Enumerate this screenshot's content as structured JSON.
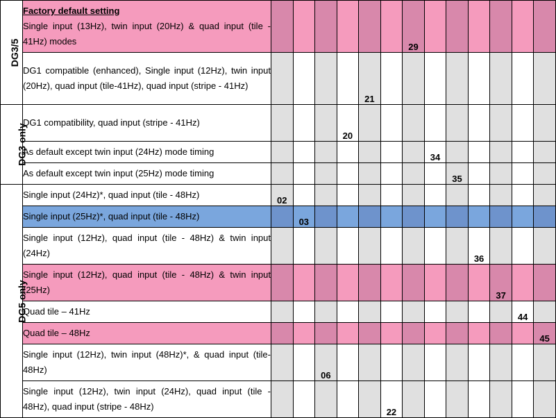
{
  "groups": [
    {
      "label": "DG3/5",
      "rows": 2
    },
    {
      "label": "DG3 only",
      "rows": 3
    },
    {
      "label": "DG5 only",
      "rows": 8
    }
  ],
  "column_count": 13,
  "rows": [
    {
      "title": "Factory default setting",
      "text": "Single input (13Hz), twin input (20Hz) & quad input (tile - 41Hz) modes",
      "code": "29",
      "col": 6,
      "highlight": "pink",
      "height": 3
    },
    {
      "title": "",
      "text": "DG1 compatible (enhanced), Single input (12Hz), twin input (20Hz), quad input (tile-41Hz), quad input (stripe - 41Hz)",
      "code": "21",
      "col": 4,
      "highlight": "none",
      "height": 3
    },
    {
      "title": "",
      "text": "DG1 compatibility, quad input (stripe - 41Hz)",
      "code": "20",
      "col": 3,
      "highlight": "none",
      "height": 2
    },
    {
      "title": "",
      "text": "As default except twin input (24Hz) mode timing",
      "code": "34",
      "col": 7,
      "highlight": "none",
      "height": 1
    },
    {
      "title": "",
      "text": "As default except twin input (25Hz) mode timing",
      "code": "35",
      "col": 8,
      "highlight": "none",
      "height": 1
    },
    {
      "title": "",
      "text": "Single input (24Hz)*, quad input (tile - 48Hz)",
      "code": "02",
      "col": 0,
      "highlight": "none",
      "height": 1
    },
    {
      "title": "",
      "text": "Single input (25Hz)*, quad input (tile - 48Hz)",
      "code": "03",
      "col": 1,
      "highlight": "blue",
      "height": 1
    },
    {
      "title": "",
      "text": "Single input (12Hz), quad input (tile - 48Hz) & twin input (24Hz)",
      "code": "36",
      "col": 9,
      "highlight": "none",
      "height": 2
    },
    {
      "title": "",
      "text": "Single input (12Hz), quad input (tile - 48Hz) & twin input (25Hz)",
      "code": "37",
      "col": 10,
      "highlight": "pink",
      "height": 2
    },
    {
      "title": "",
      "text": "Quad tile – 41Hz",
      "code": "44",
      "col": 11,
      "highlight": "none",
      "height": 1
    },
    {
      "title": "",
      "text": "Quad tile – 48Hz",
      "code": "45",
      "col": 12,
      "highlight": "pink",
      "height": 1
    },
    {
      "title": "",
      "text": "Single input (12Hz), twin input (48Hz)*, & quad input (tile-48Hz)",
      "code": "06",
      "col": 2,
      "highlight": "none",
      "height": 2
    },
    {
      "title": "",
      "text": "Single input (12Hz), twin input (24Hz), quad input (tile - 48Hz), quad input (stripe - 48Hz)",
      "code": "22",
      "col": 5,
      "highlight": "none",
      "height": 2
    }
  ]
}
